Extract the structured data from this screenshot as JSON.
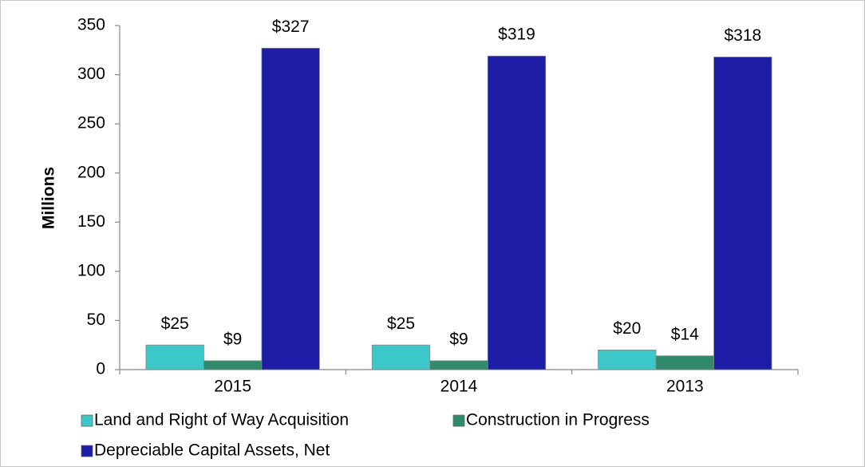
{
  "chart_data": {
    "type": "bar",
    "y_label": "Millions",
    "categories": [
      "2015",
      "2014",
      "2013"
    ],
    "series": [
      {
        "name": "Land and Right of Way Acquisition",
        "color": "#3cc8c8",
        "values": [
          25,
          25,
          20
        ],
        "value_labels": [
          "$25",
          "$25",
          "$20"
        ]
      },
      {
        "name": "Construction in Progress",
        "color": "#2f8a6c",
        "values": [
          9,
          9,
          14
        ],
        "value_labels": [
          "$9",
          "$9",
          "$14"
        ]
      },
      {
        "name": "Depreciable Capital Assets, Net",
        "color": "#1c1ca6",
        "values": [
          327,
          319,
          318
        ],
        "value_labels": [
          "$327",
          "$319",
          "$318"
        ]
      }
    ],
    "ylim": [
      0,
      350
    ],
    "yticks": [
      0,
      50,
      100,
      150,
      200,
      250,
      300,
      350
    ],
    "grid": false
  }
}
